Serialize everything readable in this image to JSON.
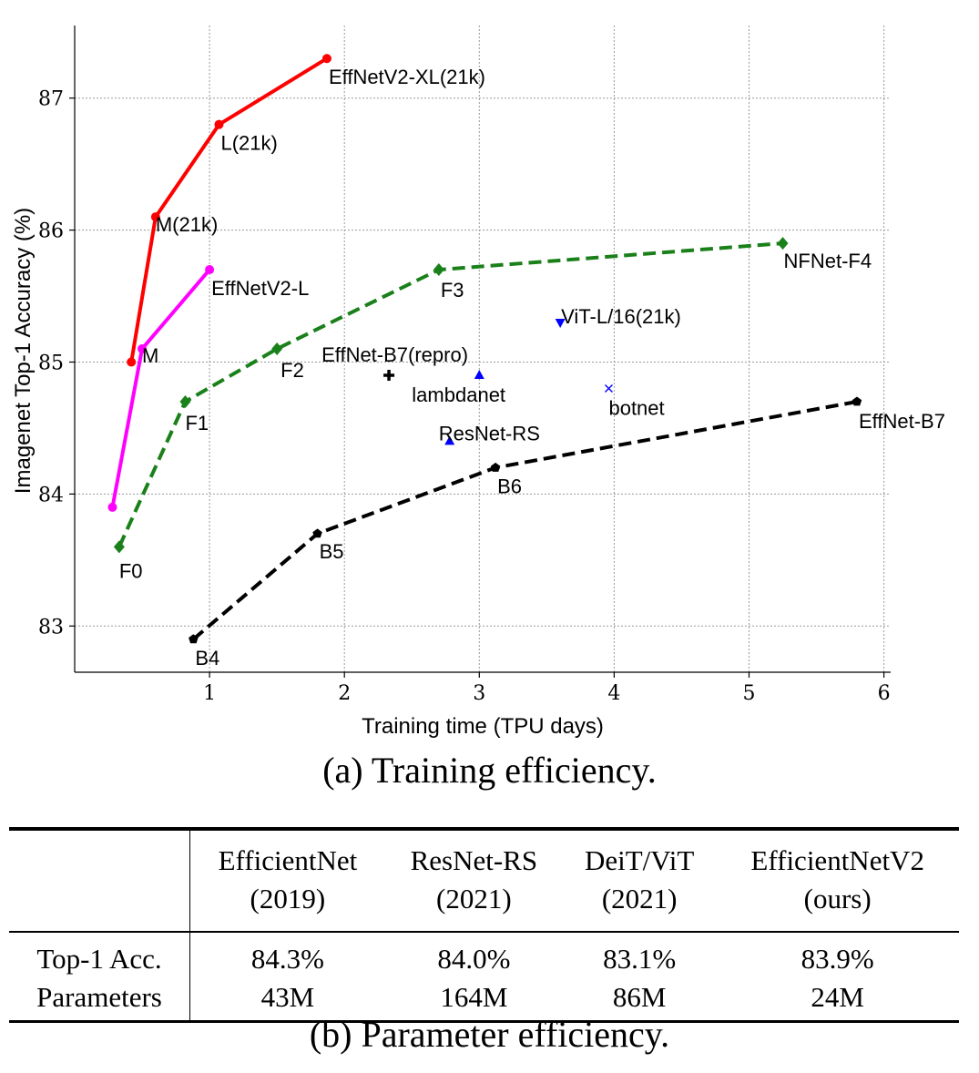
{
  "chart_data": {
    "type": "line",
    "xlabel": "Training time (TPU days)",
    "ylabel": "Imagenet Top-1 Accuracy (%)",
    "xlim": [
      0,
      6.05
    ],
    "ylim": [
      82.65,
      87.55
    ],
    "xticks": [
      1,
      2,
      3,
      4,
      5,
      6
    ],
    "yticks": [
      83,
      84,
      85,
      86,
      87
    ],
    "grid": true,
    "series": [
      {
        "color": "#ff0000",
        "style": "solid",
        "marker": "circle",
        "points": [
          {
            "x": 0.42,
            "y": 85.0,
            "label": ""
          },
          {
            "x": 0.6,
            "y": 86.1,
            "label": "M(21k)"
          },
          {
            "x": 1.07,
            "y": 86.8,
            "label": "L(21k)"
          },
          {
            "x": 1.87,
            "y": 87.3,
            "label": "EffNetV2-XL(21k)"
          }
        ]
      },
      {
        "color": "#ff00ff",
        "style": "solid",
        "marker": "circle",
        "points": [
          {
            "x": 0.28,
            "y": 83.9,
            "label": ""
          },
          {
            "x": 0.5,
            "y": 85.1,
            "label": "M"
          },
          {
            "x": 1.0,
            "y": 85.7,
            "label": "EffNetV2-L"
          }
        ]
      },
      {
        "color": "#1a801a",
        "style": "dashed",
        "marker": "diamond",
        "points": [
          {
            "x": 0.33,
            "y": 83.6,
            "label": "F0"
          },
          {
            "x": 0.82,
            "y": 84.7,
            "label": "F1"
          },
          {
            "x": 1.5,
            "y": 85.1,
            "label": "F2"
          },
          {
            "x": 2.7,
            "y": 85.7,
            "label": "F3"
          },
          {
            "x": 5.25,
            "y": 85.9,
            "label": "NFNet-F4"
          }
        ]
      },
      {
        "color": "#000000",
        "style": "dashed",
        "marker": "pentagon",
        "points": [
          {
            "x": 0.88,
            "y": 82.9,
            "label": "B4"
          },
          {
            "x": 1.8,
            "y": 83.7,
            "label": "B5"
          },
          {
            "x": 3.12,
            "y": 84.2,
            "label": "B6"
          },
          {
            "x": 5.8,
            "y": 84.7,
            "label": "EffNet-B7"
          }
        ]
      }
    ],
    "points": [
      {
        "x": 2.33,
        "y": 84.9,
        "label": "EffNet-B7(repro)",
        "marker": "plus",
        "color": "#000000"
      },
      {
        "x": 3.0,
        "y": 84.9,
        "label": "lambdanet",
        "marker": "triangle-up",
        "color": "#0000ff"
      },
      {
        "x": 2.78,
        "y": 84.4,
        "label": "ResNet-RS",
        "marker": "triangle-up",
        "color": "#0000ff"
      },
      {
        "x": 3.6,
        "y": 85.3,
        "label": "ViT-L/16(21k)",
        "marker": "triangle-down",
        "color": "#0000ff"
      },
      {
        "x": 3.96,
        "y": 84.8,
        "label": "botnet",
        "marker": "x",
        "color": "#0000ff"
      }
    ]
  },
  "captions": {
    "a": "(a) Training efficiency.",
    "b": "(b) Parameter efficiency."
  },
  "table": {
    "columns": [
      {
        "name": "EfficientNet",
        "year": "(2019)"
      },
      {
        "name": "ResNet-RS",
        "year": "(2021)"
      },
      {
        "name": "DeiT/ViT",
        "year": "(2021)"
      },
      {
        "name": "EfficientNetV2",
        "year": "(ours)"
      }
    ],
    "rows": [
      {
        "label": "Top-1 Acc.",
        "values": [
          "84.3%",
          "84.0%",
          "83.1%",
          "83.9%"
        ]
      },
      {
        "label": "Parameters",
        "values": [
          "43M",
          "164M",
          "86M",
          "24M"
        ]
      }
    ]
  }
}
